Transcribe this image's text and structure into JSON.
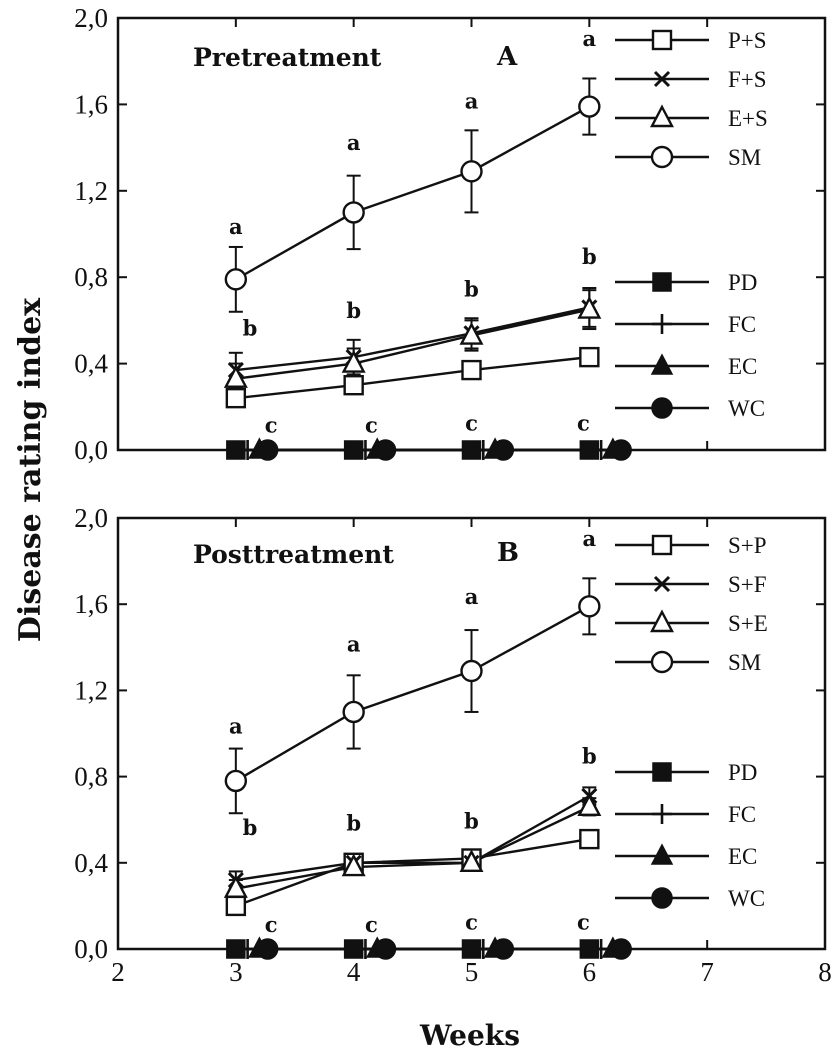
{
  "figure": {
    "ylabel": "Disease rating index",
    "xlabel": "Weeks"
  },
  "chart_data": [
    {
      "type": "line",
      "panel": "A",
      "title": "Pretreatment",
      "letter": "A",
      "xlabel": "Weeks",
      "ylabel": "Disease rating index",
      "xlim": [
        2,
        8
      ],
      "ylim": [
        0,
        2
      ],
      "x_ticks": [
        "2",
        "3",
        "4",
        "5",
        "6",
        "7",
        "8"
      ],
      "y_ticks": [
        "0,0",
        "0,4",
        "0,8",
        "1,2",
        "1,6",
        "2,0"
      ],
      "x": [
        3,
        4,
        5,
        6
      ],
      "series": [
        {
          "name": "P+S",
          "marker": "square-open",
          "values": [
            0.24,
            0.3,
            0.37,
            0.43
          ],
          "err": [
            0.03,
            0.03,
            0.03,
            0.03
          ],
          "xoff": 0
        },
        {
          "name": "F+S",
          "marker": "x",
          "values": [
            0.37,
            0.43,
            0.54,
            0.66
          ],
          "err": [
            0.08,
            0.08,
            0.07,
            0.09
          ],
          "xoff": 0
        },
        {
          "name": "E+S",
          "marker": "triangle-open",
          "values": [
            0.33,
            0.4,
            0.53,
            0.65
          ],
          "err": [
            0.07,
            0.07,
            0.07,
            0.09
          ],
          "xoff": 0
        },
        {
          "name": "SM",
          "marker": "circle-open",
          "values": [
            0.79,
            1.1,
            1.29,
            1.59
          ],
          "err": [
            0.15,
            0.17,
            0.19,
            0.13
          ],
          "xoff": 0
        },
        {
          "name": "PD",
          "marker": "square-filled",
          "values": [
            0,
            0,
            0,
            0
          ],
          "err": [
            0,
            0,
            0,
            0
          ],
          "xoff": 0
        },
        {
          "name": "FC",
          "marker": "plus",
          "values": [
            0,
            0,
            0,
            0
          ],
          "err": [
            0,
            0,
            0,
            0
          ],
          "xoff": 0.1
        },
        {
          "name": "EC",
          "marker": "triangle-filled",
          "values": [
            0,
            0,
            0,
            0
          ],
          "err": [
            0,
            0,
            0,
            0
          ],
          "xoff": 0.2
        },
        {
          "name": "WC",
          "marker": "circle-filled",
          "values": [
            0,
            0,
            0,
            0
          ],
          "err": [
            0,
            0,
            0,
            0
          ],
          "xoff": 0.27
        }
      ],
      "annotations": [
        {
          "text": "a",
          "x": 3,
          "y": 1.0
        },
        {
          "text": "a",
          "x": 4,
          "y": 1.39
        },
        {
          "text": "a",
          "x": 5,
          "y": 1.58
        },
        {
          "text": "a",
          "x": 6,
          "y": 1.87
        },
        {
          "text": "b",
          "x": 3.12,
          "y": 0.53
        },
        {
          "text": "b",
          "x": 4,
          "y": 0.61
        },
        {
          "text": "b",
          "x": 5,
          "y": 0.71
        },
        {
          "text": "b",
          "x": 6,
          "y": 0.86
        },
        {
          "text": "c",
          "x": 3.3,
          "y": 0.08
        },
        {
          "text": "c",
          "x": 4.15,
          "y": 0.08
        },
        {
          "text": "c",
          "x": 5,
          "y": 0.09
        },
        {
          "text": "c",
          "x": 5.95,
          "y": 0.09
        }
      ]
    },
    {
      "type": "line",
      "panel": "B",
      "title": "Posttreatment",
      "letter": "B",
      "xlabel": "Weeks",
      "ylabel": "Disease rating index",
      "xlim": [
        2,
        8
      ],
      "ylim": [
        0,
        2
      ],
      "x_ticks": [
        "2",
        "3",
        "4",
        "5",
        "6",
        "7",
        "8"
      ],
      "y_ticks": [
        "0,0",
        "0,4",
        "0,8",
        "1,2",
        "1,6",
        "2,0"
      ],
      "x": [
        3,
        4,
        5,
        6
      ],
      "series": [
        {
          "name": "S+P",
          "marker": "square-open",
          "values": [
            0.2,
            0.4,
            0.42,
            0.51
          ],
          "err": [
            0.03,
            0.03,
            0.03,
            0.03
          ],
          "xoff": 0
        },
        {
          "name": "S+F",
          "marker": "x",
          "values": [
            0.32,
            0.4,
            0.4,
            0.71
          ],
          "err": [
            0.04,
            0.03,
            0.03,
            0.04
          ],
          "xoff": 0
        },
        {
          "name": "S+E",
          "marker": "triangle-open",
          "values": [
            0.28,
            0.38,
            0.4,
            0.66
          ],
          "err": [
            0.04,
            0.03,
            0.03,
            0.04
          ],
          "xoff": 0
        },
        {
          "name": "SM",
          "marker": "circle-open",
          "values": [
            0.78,
            1.1,
            1.29,
            1.59
          ],
          "err": [
            0.15,
            0.17,
            0.19,
            0.13
          ],
          "xoff": 0
        },
        {
          "name": "PD",
          "marker": "square-filled",
          "values": [
            0,
            0,
            0,
            0
          ],
          "err": [
            0,
            0,
            0,
            0
          ],
          "xoff": 0
        },
        {
          "name": "FC",
          "marker": "plus",
          "values": [
            0,
            0,
            0,
            0
          ],
          "err": [
            0,
            0,
            0,
            0
          ],
          "xoff": 0.1
        },
        {
          "name": "EC",
          "marker": "triangle-filled",
          "values": [
            0,
            0,
            0,
            0
          ],
          "err": [
            0,
            0,
            0,
            0
          ],
          "xoff": 0.2
        },
        {
          "name": "WC",
          "marker": "circle-filled",
          "values": [
            0,
            0,
            0,
            0
          ],
          "err": [
            0,
            0,
            0,
            0
          ],
          "xoff": 0.27
        }
      ],
      "annotations": [
        {
          "text": "a",
          "x": 3,
          "y": 1.0
        },
        {
          "text": "a",
          "x": 4,
          "y": 1.38
        },
        {
          "text": "a",
          "x": 5,
          "y": 1.6
        },
        {
          "text": "a",
          "x": 6,
          "y": 1.87
        },
        {
          "text": "b",
          "x": 3.12,
          "y": 0.53
        },
        {
          "text": "b",
          "x": 4,
          "y": 0.55
        },
        {
          "text": "b",
          "x": 5,
          "y": 0.56
        },
        {
          "text": "b",
          "x": 6,
          "y": 0.86
        },
        {
          "text": "c",
          "x": 3.3,
          "y": 0.08
        },
        {
          "text": "c",
          "x": 4.15,
          "y": 0.08
        },
        {
          "text": "c",
          "x": 5,
          "y": 0.09
        },
        {
          "text": "c",
          "x": 5.95,
          "y": 0.09
        }
      ]
    }
  ]
}
